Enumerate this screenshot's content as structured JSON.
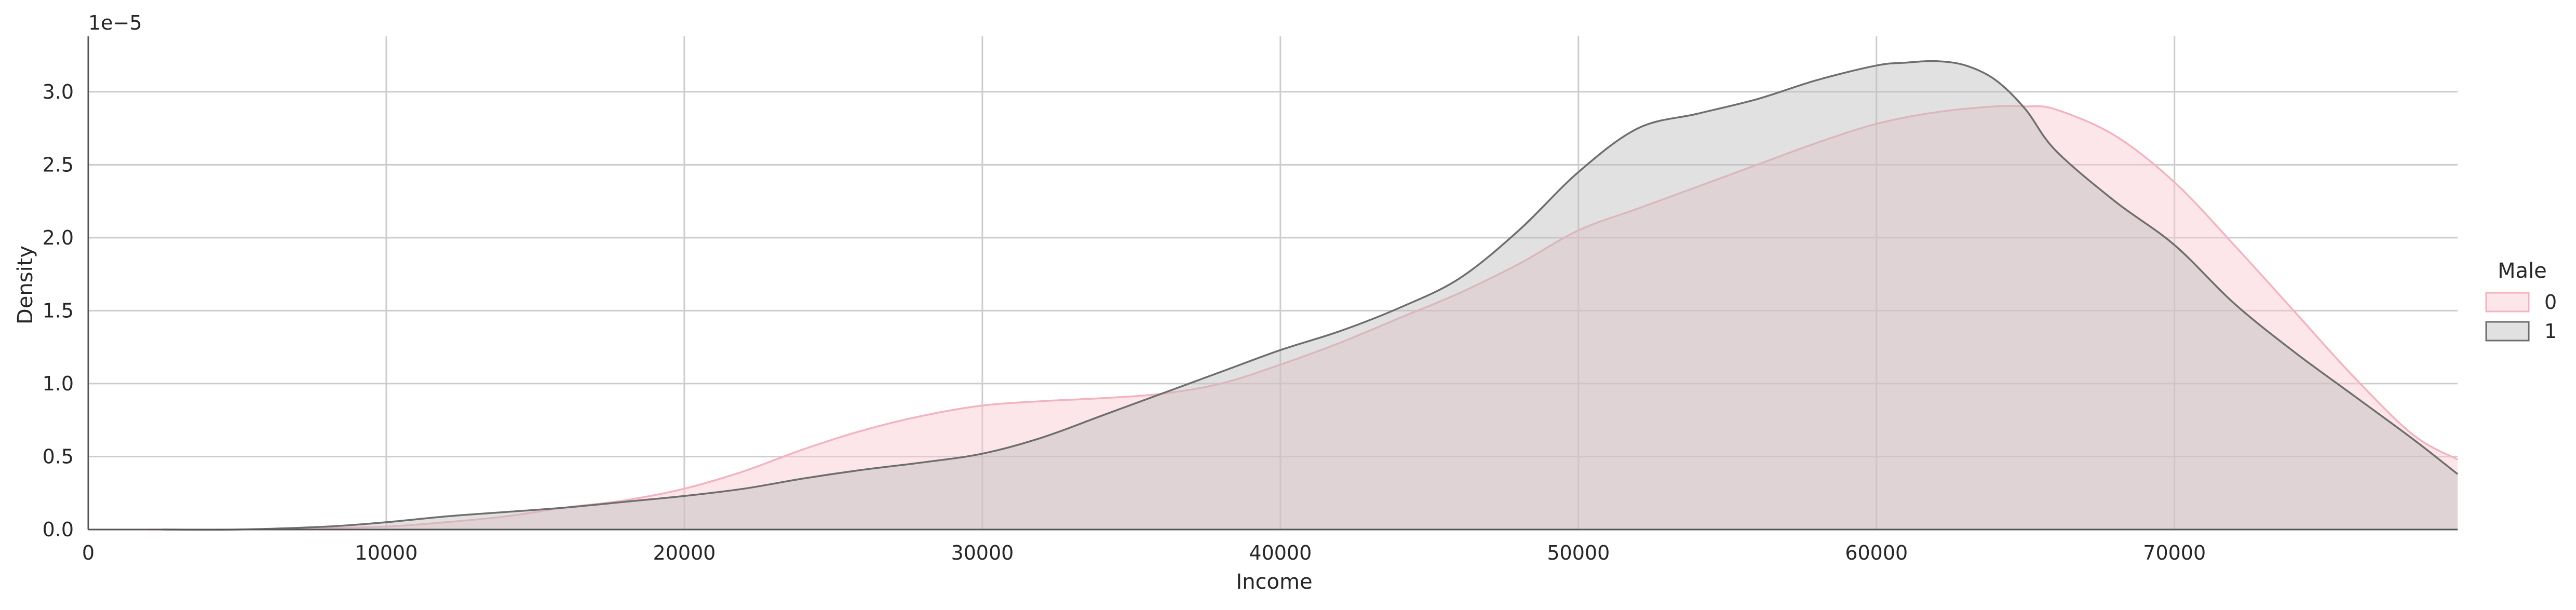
{
  "chart_data": {
    "type": "area",
    "xlabel": "Income",
    "ylabel": "Density",
    "y_offset_label": "1e−5",
    "xlim": [
      0,
      79500
    ],
    "ylim": [
      0,
      3.38
    ],
    "x_ticks": [
      {
        "value": 0,
        "label": "0"
      },
      {
        "value": 10000,
        "label": "10000"
      },
      {
        "value": 20000,
        "label": "20000"
      },
      {
        "value": 30000,
        "label": "30000"
      },
      {
        "value": 40000,
        "label": "40000"
      },
      {
        "value": 50000,
        "label": "50000"
      },
      {
        "value": 60000,
        "label": "60000"
      },
      {
        "value": 70000,
        "label": "70000"
      }
    ],
    "y_ticks": [
      {
        "value": 0.0,
        "label": "0.0"
      },
      {
        "value": 0.5,
        "label": "0.5"
      },
      {
        "value": 1.0,
        "label": "1.0"
      },
      {
        "value": 1.5,
        "label": "1.5"
      },
      {
        "value": 2.0,
        "label": "2.0"
      },
      {
        "value": 2.5,
        "label": "2.5"
      },
      {
        "value": 3.0,
        "label": "3.0"
      }
    ],
    "grid": true,
    "legend": {
      "title": "Male",
      "placement": "right"
    },
    "series": [
      {
        "name": "0",
        "fill": "#f8c8d0",
        "stroke": "#f2b3bf",
        "x": [
          2000,
          5000,
          8000,
          10000,
          12000,
          14000,
          16000,
          18000,
          20000,
          22000,
          24000,
          26000,
          28000,
          30000,
          32000,
          34000,
          36000,
          38000,
          40000,
          42000,
          44000,
          46000,
          48000,
          50000,
          52000,
          54000,
          56000,
          58000,
          60000,
          62000,
          64000,
          65000,
          66000,
          68000,
          70000,
          72000,
          74000,
          76000,
          78000,
          79500
        ],
        "y": [
          0.0,
          0.0,
          0.01,
          0.02,
          0.05,
          0.09,
          0.15,
          0.2,
          0.28,
          0.4,
          0.55,
          0.68,
          0.78,
          0.85,
          0.88,
          0.9,
          0.93,
          1.0,
          1.13,
          1.28,
          1.45,
          1.62,
          1.82,
          2.05,
          2.2,
          2.35,
          2.5,
          2.65,
          2.78,
          2.86,
          2.9,
          2.9,
          2.88,
          2.7,
          2.38,
          1.95,
          1.5,
          1.05,
          0.65,
          0.48
        ]
      },
      {
        "name": "1",
        "fill": "#bdbdbd",
        "stroke": "#6e6e6e",
        "x": [
          2500,
          5000,
          8000,
          10000,
          12000,
          14000,
          16000,
          18000,
          20000,
          22000,
          24000,
          26000,
          28000,
          30000,
          32000,
          34000,
          36000,
          38000,
          40000,
          42000,
          44000,
          46000,
          48000,
          50000,
          52000,
          54000,
          56000,
          58000,
          60000,
          61000,
          62000,
          63000,
          64000,
          65000,
          66000,
          68000,
          70000,
          72000,
          74000,
          76000,
          78000,
          79500
        ],
        "y": [
          0.0,
          0.0,
          0.02,
          0.05,
          0.09,
          0.12,
          0.15,
          0.19,
          0.23,
          0.28,
          0.35,
          0.41,
          0.46,
          0.52,
          0.63,
          0.78,
          0.93,
          1.08,
          1.23,
          1.36,
          1.52,
          1.72,
          2.05,
          2.45,
          2.75,
          2.85,
          2.95,
          3.08,
          3.18,
          3.2,
          3.21,
          3.18,
          3.08,
          2.88,
          2.6,
          2.25,
          1.95,
          1.55,
          1.22,
          0.92,
          0.62,
          0.38
        ]
      }
    ]
  }
}
